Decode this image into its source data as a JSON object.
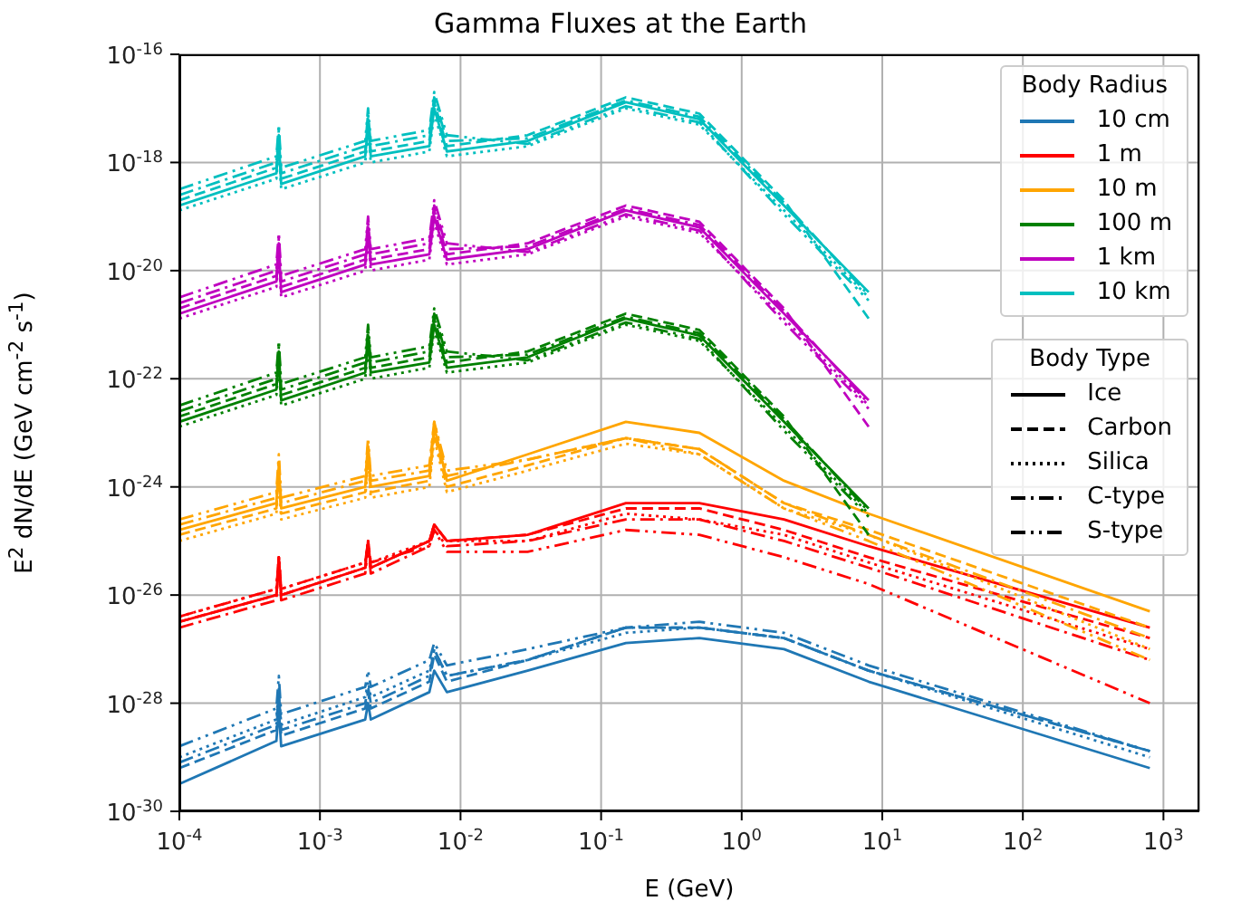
{
  "chart_data": {
    "type": "line",
    "title": "Gamma Fluxes at the Earth",
    "xlabel": "E (GeV)",
    "ylabel": "E$^{2}$ dN/dE (GeV cm$^{-2}$ s$^{-1}$)",
    "legend_title": "Body Radius",
    "legend": "top right",
    "grid": true,
    "log": "xy",
    "annotations": [
      "Body Type",
      "Ice",
      "Carbon",
      "Silica",
      "C-type",
      "S-type"
    ],
    "xlim": [
      0.0001,
      1800
    ],
    "ylim": [
      1e-30,
      1e-16
    ],
    "xticks": [
      {
        "value": 0.0001,
        "label": "10$^{-4}$"
      },
      {
        "value": 0.001,
        "label": "10$^{-3}$"
      },
      {
        "value": 0.01,
        "label": "10$^{-2}$"
      },
      {
        "value": 0.1,
        "label": "10$^{-1}$"
      },
      {
        "value": 1,
        "label": "10$^{0}$"
      },
      {
        "value": 10,
        "label": "10$^{1}$"
      },
      {
        "value": 100,
        "label": "10$^{2}$"
      },
      {
        "value": 1000,
        "label": "10$^{3}$"
      }
    ],
    "yticks": [
      {
        "value": 1e-30,
        "label": "10$^{-30}$"
      },
      {
        "value": 1e-28,
        "label": "10$^{-28}$"
      },
      {
        "value": 1e-26,
        "label": "10$^{-26}$"
      },
      {
        "value": 1e-24,
        "label": "10$^{-24}$"
      },
      {
        "value": 1e-22,
        "label": "10$^{-22}$"
      },
      {
        "value": 1e-20,
        "label": "10$^{-20}$"
      },
      {
        "value": 1e-18,
        "label": "10$^{-18}$"
      },
      {
        "value": 1e-16,
        "label": "10$^{-16}$"
      }
    ],
    "x": [
      0.0001,
      0.00049,
      0.00051,
      0.00053,
      0.0021,
      0.0022,
      0.0023,
      0.006,
      0.0065,
      0.008,
      0.03,
      0.15,
      0.5,
      2,
      8,
      800
    ],
    "series": [
      {
        "name": "10 cm",
        "color": "#1f77b4",
        "line_style": "solid",
        "values": [
          3.2e-30,
          2e-29,
          8e-29,
          1.6e-29,
          5e-29,
          1e-28,
          5e-29,
          1.6e-28,
          4e-28,
          1.6e-28,
          4e-28,
          1.3e-27,
          1.6e-27,
          1e-27,
          2.5e-28,
          6.3e-30
        ]
      },
      {
        "color": "#1f77b4",
        "line_style": "dashed",
        "values": [
          6.3e-30,
          3.2e-29,
          1.3e-28,
          2.5e-29,
          8e-29,
          1.6e-28,
          8e-29,
          2.5e-28,
          8e-28,
          2.5e-28,
          6.3e-28,
          2.5e-27,
          2.5e-27,
          1.6e-27,
          4e-28,
          1.3e-29
        ]
      },
      {
        "color": "#1f77b4",
        "line_style": "dotted",
        "values": [
          1e-29,
          5e-29,
          2e-28,
          4e-29,
          1.3e-28,
          2.5e-28,
          1.3e-28,
          4e-28,
          1e-27,
          3.2e-28,
          6.3e-28,
          2e-27,
          2.5e-27,
          1.6e-27,
          4e-28,
          1e-29
        ]
      },
      {
        "color": "#1f77b4",
        "line_style": "dashdot",
        "values": [
          8e-30,
          4e-29,
          1.6e-28,
          3.2e-29,
          1e-28,
          2e-28,
          1e-28,
          3.2e-28,
          1e-27,
          3.2e-28,
          6.3e-28,
          2.5e-27,
          2.5e-27,
          1.6e-27,
          4e-28,
          1.3e-29
        ]
      },
      {
        "color": "#1f77b4",
        "line_style": "dashdotdot",
        "values": [
          1.6e-29,
          8e-29,
          3.2e-28,
          6.3e-29,
          2e-28,
          4e-28,
          2e-28,
          6.3e-28,
          1.3e-27,
          5e-28,
          1e-27,
          2.5e-27,
          3.2e-27,
          2e-27,
          5e-28,
          1.3e-29
        ]
      },
      {
        "name": "1 m",
        "color": "#ff0000",
        "line_style": "solid",
        "values": [
          3.2e-27,
          1e-26,
          5e-26,
          1e-26,
          3.2e-26,
          1e-25,
          3.2e-26,
          1e-25,
          2e-25,
          1e-25,
          1.3e-25,
          5e-25,
          5e-25,
          2.5e-25,
          8e-26,
          2.5e-27
        ]
      },
      {
        "color": "#ff0000",
        "line_style": "dashed",
        "values": [
          3.2e-27,
          1e-26,
          5e-26,
          1e-26,
          3.2e-26,
          1e-25,
          3.2e-26,
          1e-25,
          2e-25,
          1e-25,
          1.3e-25,
          4e-25,
          4e-25,
          1.6e-25,
          5e-26,
          1.6e-27
        ]
      },
      {
        "color": "#ff0000",
        "line_style": "dotted",
        "values": [
          4e-27,
          1.3e-26,
          5e-26,
          1.3e-26,
          4e-26,
          1e-25,
          4e-26,
          1e-25,
          2e-25,
          1e-25,
          1e-25,
          3.2e-25,
          2.5e-25,
          1.3e-25,
          4e-26,
          1e-27
        ]
      },
      {
        "color": "#ff0000",
        "line_style": "dashdot",
        "values": [
          2.5e-27,
          8e-27,
          4e-26,
          8e-27,
          2.5e-26,
          8e-26,
          2.5e-26,
          8e-26,
          1.6e-25,
          8e-26,
          1e-25,
          2.5e-25,
          2.5e-25,
          1e-25,
          3.2e-26,
          6.3e-28
        ]
      },
      {
        "color": "#ff0000",
        "line_style": "dashdotdot",
        "values": [
          4e-27,
          1.3e-26,
          5e-26,
          1.3e-26,
          4e-26,
          1e-25,
          4e-26,
          8e-26,
          1.6e-25,
          6.3e-26,
          6.3e-26,
          1.6e-25,
          1.3e-25,
          5e-26,
          1.6e-26,
          1e-28
        ]
      },
      {
        "name": "10 m",
        "color": "#ffa500",
        "line_style": "solid",
        "values": [
          1.6e-25,
          5e-25,
          2.5e-24,
          4e-25,
          1e-24,
          5e-24,
          1e-24,
          1.6e-24,
          1.3e-23,
          1.3e-24,
          4e-24,
          1.6e-23,
          1e-23,
          1.3e-24,
          3.2e-25,
          5e-27
        ]
      },
      {
        "color": "#ffa500",
        "line_style": "dashed",
        "values": [
          1.3e-25,
          4e-25,
          2e-24,
          3.2e-25,
          8e-25,
          4e-24,
          8e-25,
          1.3e-24,
          1e-23,
          1e-24,
          2.5e-24,
          8e-24,
          5e-24,
          5e-25,
          1.6e-25,
          2.5e-27
        ]
      },
      {
        "color": "#ffa500",
        "line_style": "dotted",
        "values": [
          1e-25,
          3.2e-25,
          1.6e-24,
          2.5e-25,
          6.3e-25,
          3.2e-24,
          6.3e-25,
          1e-24,
          8e-24,
          8e-25,
          2e-24,
          6.3e-24,
          4e-24,
          4e-25,
          1.3e-25,
          1e-27
        ]
      },
      {
        "color": "#ffa500",
        "line_style": "dashdot",
        "values": [
          2e-25,
          6.3e-25,
          3.2e-24,
          5e-25,
          1.3e-24,
          6.3e-24,
          1.3e-24,
          2e-24,
          1.6e-23,
          1.6e-24,
          3.2e-24,
          8e-24,
          5e-24,
          5e-25,
          1.3e-25,
          1.6e-27
        ]
      },
      {
        "color": "#ffa500",
        "line_style": "dashdotdot",
        "values": [
          2.5e-25,
          8e-25,
          4e-24,
          6.3e-25,
          1.6e-24,
          8e-24,
          1.6e-24,
          2.5e-24,
          1.6e-23,
          2e-24,
          3.2e-24,
          8e-24,
          4e-24,
          4e-25,
          1e-25,
          6.3e-28
        ]
      },
      {
        "name": "100 m",
        "color": "#008000",
        "line_style": "solid",
        "values": [
          1.6e-23,
          6.3e-23,
          2.5e-22,
          4e-23,
          1.3e-22,
          5e-22,
          1.3e-22,
          2e-22,
          1e-21,
          1.6e-22,
          2.5e-22,
          1.3e-21,
          6.3e-22,
          1.6e-23,
          4e-25,
          null
        ]
      },
      {
        "color": "#008000",
        "line_style": "dashed",
        "values": [
          2e-23,
          8e-23,
          3.2e-22,
          5e-23,
          1.6e-22,
          6.3e-22,
          1.6e-22,
          2.5e-22,
          1.3e-21,
          2e-22,
          3.2e-22,
          1.6e-21,
          8e-22,
          2e-23,
          1.3e-25,
          null
        ]
      },
      {
        "color": "#008000",
        "line_style": "dotted",
        "values": [
          1.3e-23,
          5e-23,
          2e-22,
          3.2e-23,
          1e-22,
          4e-22,
          1e-22,
          1.6e-22,
          8e-22,
          1.3e-22,
          2e-22,
          1e-21,
          5e-22,
          1.3e-23,
          3.2e-25,
          null
        ]
      },
      {
        "color": "#008000",
        "line_style": "dashdot",
        "values": [
          2.5e-23,
          1e-22,
          4e-22,
          6.3e-23,
          2e-22,
          8e-22,
          2e-22,
          3.2e-22,
          1.6e-21,
          2.5e-22,
          2.8e-22,
          1.4e-21,
          7e-22,
          1.8e-23,
          3.5e-25,
          null
        ]
      },
      {
        "color": "#008000",
        "line_style": "dashdotdot",
        "values": [
          3.2e-23,
          1.3e-22,
          5e-22,
          8e-23,
          2.5e-22,
          1e-21,
          2.5e-22,
          4e-22,
          2e-21,
          3.2e-22,
          2.2e-22,
          1.1e-21,
          5.5e-22,
          1.1e-23,
          2.8e-25,
          null
        ]
      },
      {
        "name": "1 km",
        "color": "#bf00bf",
        "line_style": "solid",
        "values": [
          1.6e-21,
          6.3e-21,
          2.5e-20,
          4e-21,
          1.3e-20,
          5e-20,
          1.3e-20,
          2e-20,
          1e-19,
          1.6e-20,
          2.5e-20,
          1.3e-19,
          6.3e-20,
          1.6e-21,
          4e-23,
          null
        ]
      },
      {
        "color": "#bf00bf",
        "line_style": "dashed",
        "values": [
          2e-21,
          8e-21,
          3.2e-20,
          5e-21,
          1.6e-20,
          6.3e-20,
          1.6e-20,
          2.5e-20,
          1.3e-19,
          2e-20,
          3.2e-20,
          1.6e-19,
          8e-20,
          2e-21,
          1.3e-23,
          null
        ]
      },
      {
        "color": "#bf00bf",
        "line_style": "dotted",
        "values": [
          1.3e-21,
          5e-21,
          2e-20,
          3.2e-21,
          1e-20,
          4e-20,
          1e-20,
          1.6e-20,
          8e-20,
          1.3e-20,
          2e-20,
          1e-19,
          5e-20,
          1.3e-21,
          3.2e-23,
          null
        ]
      },
      {
        "color": "#bf00bf",
        "line_style": "dashdot",
        "values": [
          2.5e-21,
          1e-20,
          4e-20,
          6.3e-21,
          2e-20,
          8e-20,
          2e-20,
          3.2e-20,
          1.6e-19,
          2.5e-20,
          2.8e-20,
          1.4e-19,
          7e-20,
          1.8e-21,
          3.5e-23,
          null
        ]
      },
      {
        "color": "#bf00bf",
        "line_style": "dashdotdot",
        "values": [
          3.2e-21,
          1.3e-20,
          5e-20,
          8e-21,
          2.5e-20,
          1e-19,
          2.5e-20,
          4e-20,
          2e-19,
          3.2e-20,
          2.2e-20,
          1.1e-19,
          5.5e-20,
          1.1e-21,
          2.8e-23,
          null
        ]
      },
      {
        "name": "10 km",
        "color": "#00bfbf",
        "line_style": "solid",
        "values": [
          1.6e-19,
          6.3e-19,
          2.5e-18,
          4e-19,
          1.3e-18,
          5e-18,
          1.3e-18,
          2e-18,
          1e-17,
          1.6e-18,
          2.5e-18,
          1.3e-17,
          6.3e-18,
          1.6e-19,
          4e-21,
          null
        ]
      },
      {
        "color": "#00bfbf",
        "line_style": "dashed",
        "values": [
          2e-19,
          8e-19,
          3.2e-18,
          5e-19,
          1.6e-18,
          6.3e-18,
          1.6e-18,
          2.5e-18,
          1.3e-17,
          2e-18,
          3.2e-18,
          1.6e-17,
          8e-18,
          2e-19,
          1.3e-21,
          null
        ]
      },
      {
        "color": "#00bfbf",
        "line_style": "dotted",
        "values": [
          1.3e-19,
          5e-19,
          2e-18,
          3.2e-19,
          1e-18,
          4e-18,
          1e-18,
          1.6e-18,
          8e-18,
          1.3e-18,
          2e-18,
          1e-17,
          5e-18,
          1.3e-19,
          3.2e-21,
          null
        ]
      },
      {
        "color": "#00bfbf",
        "line_style": "dashdot",
        "values": [
          2.5e-19,
          1e-18,
          4e-18,
          6.3e-19,
          2e-18,
          8e-18,
          2e-18,
          3.2e-18,
          1.6e-17,
          2.5e-18,
          2.8e-18,
          1.4e-17,
          7e-18,
          1.8e-19,
          3.5e-21,
          null
        ]
      },
      {
        "color": "#00bfbf",
        "line_style": "dashdotdot",
        "values": [
          3.2e-19,
          1.3e-18,
          5e-18,
          8e-19,
          2.5e-18,
          1e-17,
          2.5e-18,
          4e-18,
          2e-17,
          3.2e-18,
          2.2e-18,
          1.1e-17,
          5.5e-18,
          1.1e-19,
          2.8e-21,
          null
        ]
      }
    ]
  }
}
